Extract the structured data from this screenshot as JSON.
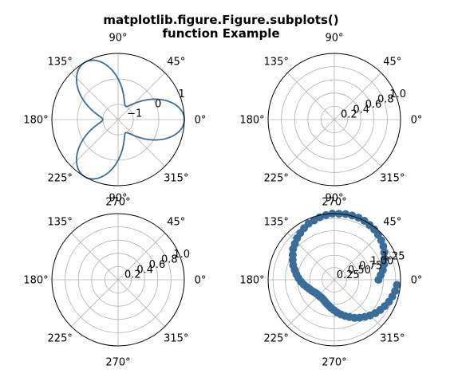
{
  "figure": {
    "title_line1": "matplotlib.figure.Figure.subplots()",
    "title_line2": "function Example"
  },
  "chart_data": [
    {
      "type": "line",
      "projection": "polar",
      "position": "top-left",
      "angle_labels": [
        "0°",
        "45°",
        "90°",
        "135°",
        "180°",
        "225°",
        "270°",
        "315°"
      ],
      "radial_labels": [
        "−1",
        "0",
        "1"
      ],
      "rlim": [
        -1.6,
        1.0
      ],
      "grid": true,
      "color": "#3a6e9a",
      "series": [
        {
          "function": "r = cos(3θ)",
          "theta_range": [
            0,
            6.283
          ]
        }
      ]
    },
    {
      "type": "line",
      "projection": "polar",
      "position": "top-right",
      "angle_labels": [
        "0°",
        "45°",
        "90°",
        "135°",
        "180°",
        "225°",
        "270°",
        "315°"
      ],
      "radial_labels": [
        "0.2",
        "0.4",
        "0.6",
        "0.8",
        "1.0"
      ],
      "rlim": [
        0,
        1.0
      ],
      "grid": true,
      "series": []
    },
    {
      "type": "line",
      "projection": "polar",
      "position": "bottom-left",
      "angle_labels": [
        "0°",
        "45°",
        "90°",
        "135°",
        "180°",
        "225°",
        "270°",
        "315°"
      ],
      "radial_labels": [
        "0.2",
        "0.4",
        "0.6",
        "0.8",
        "1.0"
      ],
      "rlim": [
        0,
        1.0
      ],
      "grid": true,
      "series": []
    },
    {
      "type": "scatter",
      "projection": "polar",
      "position": "bottom-right",
      "angle_labels": [
        "0°",
        "45°",
        "90°",
        "135°",
        "180°",
        "225°",
        "270°",
        "315°"
      ],
      "radial_labels": [
        "0.25",
        "0.50",
        "0.75",
        "1.00",
        "1.25"
      ],
      "rlim": [
        0,
        1.35
      ],
      "grid": true,
      "color": "#3a6e9a",
      "series": [
        {
          "function": "r = 0.9 + 0.55·sin(θ) (approx.)",
          "theta": [
            0.0,
            0.1,
            0.2,
            0.3,
            0.4,
            0.5,
            0.6,
            0.7,
            0.8,
            0.9,
            1.0,
            1.1,
            1.2,
            1.3,
            1.4,
            1.5,
            1.6,
            1.7,
            1.8,
            1.9,
            2.0,
            2.1,
            2.2,
            2.3,
            2.4,
            2.5,
            2.6,
            2.7,
            2.8,
            2.9,
            3.0,
            3.1,
            3.2,
            3.3,
            3.4,
            3.5,
            3.6,
            3.7,
            3.8,
            3.9,
            4.0,
            4.1,
            4.2,
            4.3,
            4.4,
            4.5,
            4.6,
            4.7,
            4.8,
            4.9,
            5.0,
            5.1,
            5.2,
            5.3,
            5.4,
            5.5,
            5.6,
            5.7,
            5.8,
            5.9,
            6.0,
            6.1,
            6.2
          ],
          "r": [
            0.9,
            0.95,
            1.01,
            1.06,
            1.11,
            1.16,
            1.21,
            1.25,
            1.28,
            1.31,
            1.33,
            1.35,
            1.36,
            1.36,
            1.36,
            1.35,
            1.35,
            1.33,
            1.31,
            1.28,
            1.26,
            1.22,
            1.18,
            1.14,
            1.09,
            1.05,
            0.99,
            0.94,
            0.89,
            0.83,
            0.78,
            0.73,
            0.68,
            0.63,
            0.58,
            0.54,
            0.51,
            0.48,
            0.46,
            0.45,
            0.45,
            0.45,
            0.46,
            0.48,
            0.51,
            0.54,
            0.58,
            0.62,
            0.67,
            0.72,
            0.77,
            0.82,
            0.88,
            0.93,
            0.98,
            1.03,
            1.08,
            1.12,
            1.16,
            1.2,
            1.23,
            1.26,
            1.28
          ]
        }
      ]
    }
  ]
}
